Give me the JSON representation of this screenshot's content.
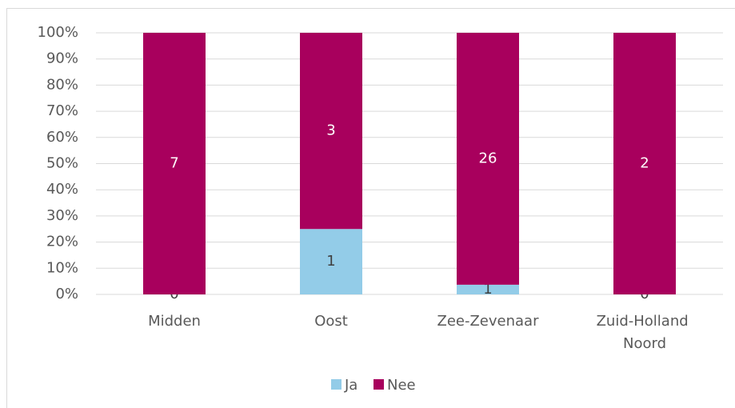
{
  "chart_data": {
    "type": "bar",
    "stacking": "percent",
    "categories": [
      "Midden",
      "Oost",
      "Zee-Zevenaar",
      "Zuid-Holland Noord"
    ],
    "series": [
      {
        "name": "Ja",
        "color": "#93cce8",
        "values": [
          0,
          1,
          1,
          0
        ]
      },
      {
        "name": "Nee",
        "color": "#a8005d",
        "values": [
          7,
          3,
          26,
          2
        ]
      }
    ],
    "ylim": [
      0,
      100
    ],
    "yticks": [
      {
        "value": 0,
        "label": "0%"
      },
      {
        "value": 10,
        "label": "10%"
      },
      {
        "value": 20,
        "label": "20%"
      },
      {
        "value": 30,
        "label": "30%"
      },
      {
        "value": 40,
        "label": "40%"
      },
      {
        "value": 50,
        "label": "50%"
      },
      {
        "value": 60,
        "label": "60%"
      },
      {
        "value": 70,
        "label": "70%"
      },
      {
        "value": 80,
        "label": "80%"
      },
      {
        "value": 90,
        "label": "90%"
      },
      {
        "value": 100,
        "label": "100%"
      }
    ],
    "grid": true,
    "legend": "bottom"
  }
}
